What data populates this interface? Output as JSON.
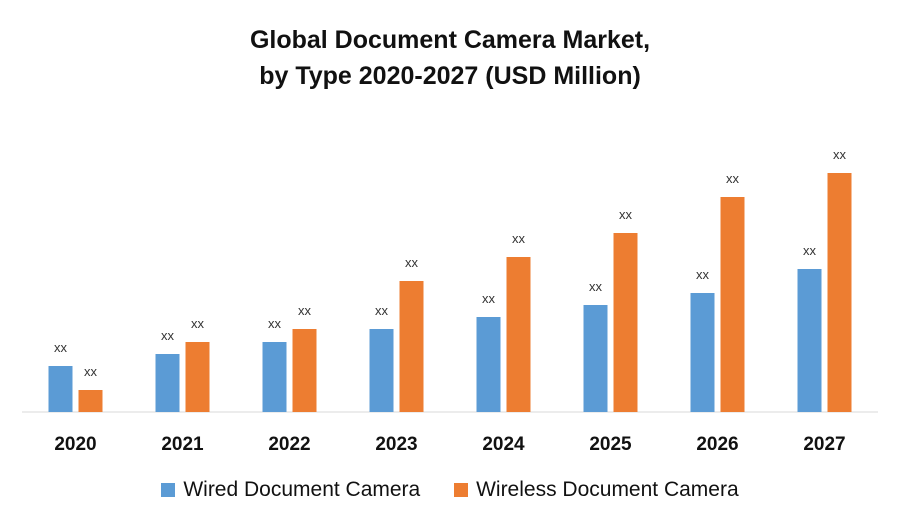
{
  "title_line1": "Global Document Camera Market,",
  "title_line2": "by Type 2020-2027 (USD Million)",
  "chart_data": {
    "type": "bar",
    "title": "Global Document Camera Market, by Type 2020-2027 (USD Million)",
    "categories": [
      "2020",
      "2021",
      "2022",
      "2023",
      "2024",
      "2025",
      "2026",
      "2027"
    ],
    "series": [
      {
        "name": "Wired Document Camera",
        "color": "#5b9bd5",
        "values": [
          46,
          58,
          70,
          83,
          95,
          107,
          119,
          143
        ],
        "data_labels": [
          "xx",
          "xx",
          "xx",
          "xx",
          "xx",
          "xx",
          "xx",
          "xx"
        ]
      },
      {
        "name": "Wireless Document Camera",
        "color": "#ed7d31",
        "values": [
          22,
          70,
          83,
          131,
          155,
          179,
          215,
          239
        ],
        "data_labels": [
          "xx",
          "xx",
          "xx",
          "xx",
          "xx",
          "xx",
          "xx",
          "xx"
        ]
      }
    ],
    "ylim": [
      0,
      300
    ],
    "grid": false,
    "y_axis_visible": false,
    "legend_position": "bottom"
  }
}
